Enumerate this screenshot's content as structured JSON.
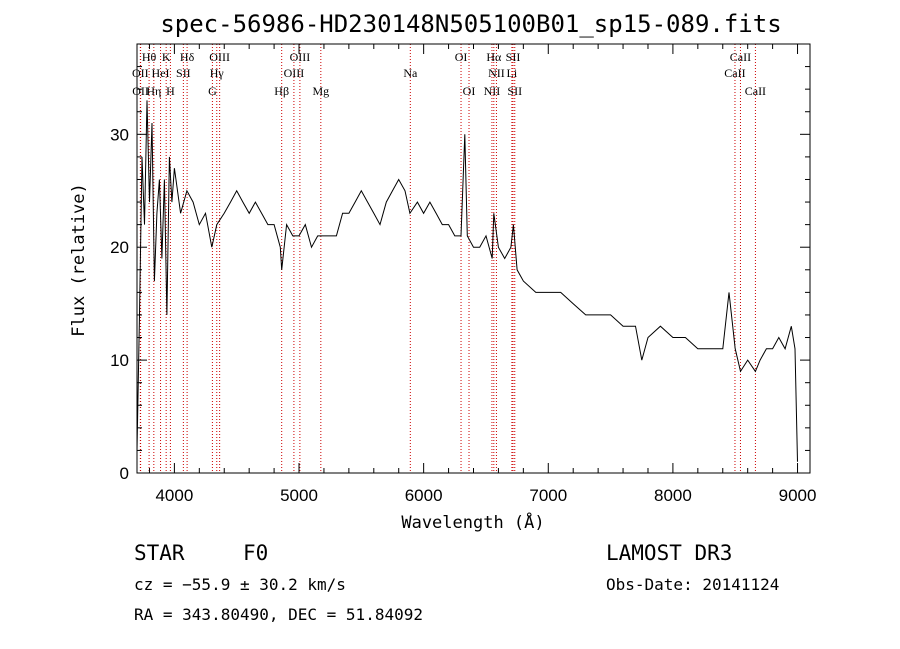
{
  "chart_data": {
    "type": "line",
    "title": "spec-56986-HD230148N505100B01_sp15-089.fits",
    "xlabel": "Wavelength (Å)",
    "ylabel": "Flux (relative)",
    "xlim": [
      3700,
      9100
    ],
    "ylim": [
      0,
      38
    ],
    "xticks": [
      4000,
      5000,
      6000,
      7000,
      8000,
      9000
    ],
    "yticks": [
      0,
      10,
      20,
      30
    ],
    "series": [
      {
        "name": "flux",
        "x": [
          3700,
          3720,
          3740,
          3760,
          3780,
          3800,
          3820,
          3840,
          3860,
          3880,
          3900,
          3920,
          3940,
          3960,
          3980,
          4000,
          4050,
          4100,
          4150,
          4200,
          4250,
          4300,
          4340,
          4400,
          4450,
          4500,
          4550,
          4600,
          4650,
          4700,
          4750,
          4800,
          4850,
          4861,
          4900,
          4950,
          5000,
          5050,
          5100,
          5150,
          5200,
          5250,
          5300,
          5350,
          5400,
          5450,
          5500,
          5550,
          5600,
          5650,
          5700,
          5750,
          5800,
          5850,
          5890,
          5950,
          6000,
          6050,
          6100,
          6150,
          6200,
          6250,
          6300,
          6330,
          6350,
          6400,
          6450,
          6500,
          6550,
          6563,
          6600,
          6650,
          6700,
          6720,
          6750,
          6800,
          6900,
          7000,
          7100,
          7200,
          7300,
          7400,
          7500,
          7600,
          7700,
          7750,
          7800,
          7900,
          8000,
          8100,
          8200,
          8300,
          8400,
          8450,
          8500,
          8542,
          8600,
          8662,
          8700,
          8750,
          8800,
          8850,
          8900,
          8950,
          8980,
          9000
        ],
        "values": [
          2,
          14,
          28,
          22,
          33,
          24,
          31,
          17,
          23,
          26,
          19,
          26,
          14,
          28,
          24,
          27,
          23,
          25,
          24,
          22,
          23,
          20,
          22,
          23,
          24,
          25,
          24,
          23,
          24,
          23,
          22,
          22,
          20,
          18,
          22,
          21,
          21,
          22,
          20,
          21,
          21,
          21,
          21,
          23,
          23,
          24,
          25,
          24,
          23,
          22,
          24,
          25,
          26,
          25,
          23,
          24,
          23,
          24,
          23,
          22,
          22,
          21,
          21,
          30,
          21,
          20,
          20,
          21,
          19,
          23,
          20,
          19,
          20,
          22,
          18,
          17,
          16,
          16,
          16,
          15,
          14,
          14,
          14,
          13,
          13,
          10,
          12,
          13,
          12,
          12,
          11,
          11,
          11,
          16,
          11,
          9,
          10,
          9,
          10,
          11,
          11,
          12,
          11,
          13,
          11,
          1
        ]
      }
    ],
    "spectral_lines": [
      {
        "label": "Hθ",
        "wavelength": 3797,
        "row": 0
      },
      {
        "label": "K",
        "wavelength": 3934,
        "row": 0
      },
      {
        "label": "Hδ",
        "wavelength": 4102,
        "row": 0
      },
      {
        "label": "OIII",
        "wavelength": 4363,
        "row": 0
      },
      {
        "label": "OIII",
        "wavelength": 5007,
        "row": 0
      },
      {
        "label": "OI",
        "wavelength": 6300,
        "row": 0
      },
      {
        "label": "Hα",
        "wavelength": 6563,
        "row": 0
      },
      {
        "label": "SII",
        "wavelength": 6717,
        "row": 0
      },
      {
        "label": "CaII",
        "wavelength": 8542,
        "row": 0
      },
      {
        "label": "OII",
        "wavelength": 3727,
        "row": 1
      },
      {
        "label": "HeI",
        "wavelength": 3889,
        "row": 1
      },
      {
        "label": "SII",
        "wavelength": 4072,
        "row": 1
      },
      {
        "label": "Hγ",
        "wavelength": 4340,
        "row": 1
      },
      {
        "label": "OIII",
        "wavelength": 4959,
        "row": 1
      },
      {
        "label": "Na",
        "wavelength": 5893,
        "row": 1
      },
      {
        "label": "NII",
        "wavelength": 6584,
        "row": 1
      },
      {
        "label": "Li",
        "wavelength": 6708,
        "row": 1
      },
      {
        "label": "CaII",
        "wavelength": 8498,
        "row": 1
      },
      {
        "label": "OII",
        "wavelength": 3729,
        "row": 2
      },
      {
        "label": "Hη",
        "wavelength": 3835,
        "row": 2
      },
      {
        "label": "H",
        "wavelength": 3968,
        "row": 2
      },
      {
        "label": "G",
        "wavelength": 4305,
        "row": 2
      },
      {
        "label": "Hβ",
        "wavelength": 4861,
        "row": 2
      },
      {
        "label": "Mg",
        "wavelength": 5175,
        "row": 2
      },
      {
        "label": "OI",
        "wavelength": 6364,
        "row": 2
      },
      {
        "label": "NII",
        "wavelength": 6548,
        "row": 2
      },
      {
        "label": "SII",
        "wavelength": 6731,
        "row": 2
      },
      {
        "label": "CaII",
        "wavelength": 8662,
        "row": 2
      }
    ],
    "line_color": "#000000",
    "marker_color": "#cc0000"
  },
  "info": {
    "class": "STAR",
    "subclass": "F0",
    "survey": "LAMOST DR3",
    "cz": "cz = −55.9 ± 30.2 km/s",
    "obs_date": "Obs-Date: 20141124",
    "coords": "RA = 343.80490, DEC =  51.84092"
  }
}
